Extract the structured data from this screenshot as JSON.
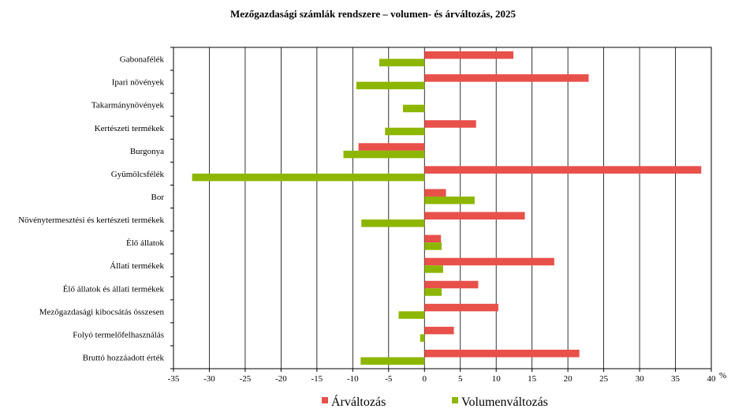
{
  "chart_data": {
    "type": "bar",
    "orientation": "horizontal",
    "title": "Mezőgazdasági számlák rendszere – volumen-  és árváltozás, 2025",
    "xlabel": "%",
    "xlim": [
      -35,
      40
    ],
    "x_ticks": [
      -35,
      -30,
      -25,
      -20,
      -15,
      -10,
      -5,
      0,
      5,
      10,
      15,
      20,
      25,
      30,
      35,
      40
    ],
    "grid": "vertical",
    "legend_position": "bottom",
    "categories": [
      "Gabonafélék",
      "Ipari növények",
      "Takarmánynövények",
      "Kertészeti termékek",
      "Burgonya",
      "Gyümölcsfélék",
      "Bor",
      "Növénytermesztési és kertészeti termékek",
      "Élő állatok",
      "Állati termékek",
      "Élő állatok és állati termékek",
      "Mezőgazdasági kibocsátás összesen",
      "Folyó termelőfelhasználás",
      "Bruttó hozzáadott érték"
    ],
    "series": [
      {
        "name": "Árváltozás",
        "color": "#E8504A",
        "values": [
          12.4,
          22.9,
          0,
          7.2,
          -9.2,
          38.6,
          3.0,
          14.0,
          2.3,
          18.1,
          7.5,
          10.3,
          4.1,
          21.6
        ]
      },
      {
        "name": "Volumenváltozás",
        "color": "#8DB600",
        "values": [
          -6.3,
          -9.5,
          -3.0,
          -5.5,
          -11.3,
          -32.4,
          7.0,
          -8.8,
          2.4,
          2.6,
          2.4,
          -3.6,
          -0.6,
          -8.9
        ]
      }
    ]
  }
}
